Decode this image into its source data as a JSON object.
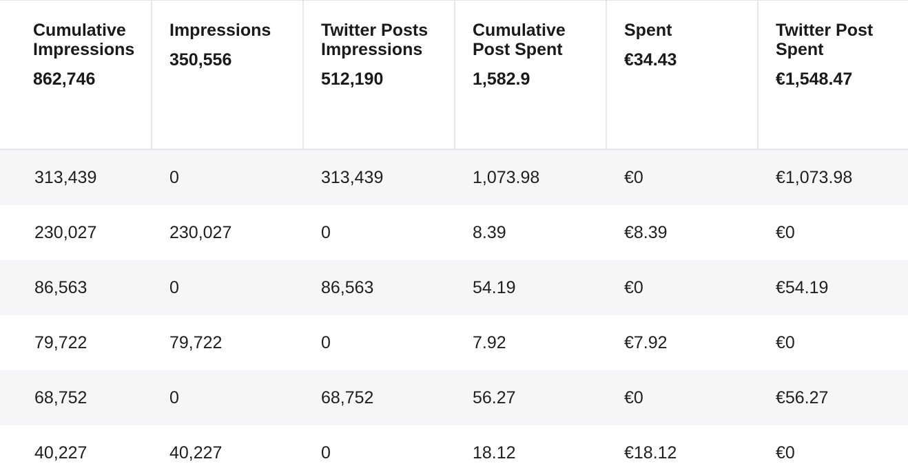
{
  "columns": [
    {
      "title": "Cumulative\nImpressions",
      "total": "862,746"
    },
    {
      "title": "Impressions",
      "total": "350,556"
    },
    {
      "title": "Twitter Posts\nImpressions",
      "total": "512,190"
    },
    {
      "title": "Cumulative\nPost Spent",
      "total": "1,582.9"
    },
    {
      "title": "Spent",
      "total": "€34.43"
    },
    {
      "title": "Twitter Post\nSpent",
      "total": "€1,548.47"
    }
  ],
  "rows": [
    [
      "313,439",
      "0",
      "313,439",
      "1,073.98",
      "€0",
      "€1,073.98"
    ],
    [
      "230,027",
      "230,027",
      "0",
      "8.39",
      "€8.39",
      "€0"
    ],
    [
      "86,563",
      "0",
      "86,563",
      "54.19",
      "€0",
      "€54.19"
    ],
    [
      "79,722",
      "79,722",
      "0",
      "7.92",
      "€7.92",
      "€0"
    ],
    [
      "68,752",
      "0",
      "68,752",
      "56.27",
      "€0",
      "€56.27"
    ],
    [
      "40,227",
      "40,227",
      "0",
      "18.12",
      "€18.12",
      "€0"
    ]
  ]
}
